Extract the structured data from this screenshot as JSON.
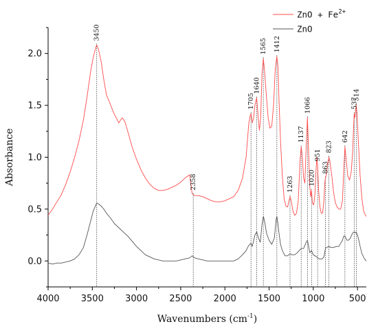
{
  "chart_data": {
    "type": "line",
    "xlabel": "Wavenumbers (cm",
    "xlabel_sup": "-1",
    "xlabel_close": ")",
    "ylabel": "Absorbance",
    "xlim": [
      4000,
      400
    ],
    "ylim": [
      -0.25,
      2.25
    ],
    "x_reversed": true,
    "x_ticks": [
      4000,
      3500,
      3000,
      2500,
      2000,
      1500,
      1000,
      500
    ],
    "y_ticks": [
      0.0,
      0.5,
      1.0,
      1.5,
      2.0
    ],
    "x_tick_labels": [
      "4000",
      "3500",
      "3000",
      "2500",
      "2000",
      "1500",
      "1000",
      "500"
    ],
    "y_tick_labels": [
      "0.0",
      "0.5",
      "1.0",
      "1.5",
      "2.0"
    ],
    "legend_position": "top-right",
    "legend": [
      {
        "label": "ZnO + Fe",
        "sup": "2+",
        "color": "#ff4a4a"
      },
      {
        "label": "ZnO",
        "sup": "",
        "color": "#555555"
      }
    ],
    "series": [
      {
        "name": "ZnO + Fe2+",
        "color": "#ff4a4a",
        "points": [
          [
            4000,
            0.44
          ],
          [
            3950,
            0.5
          ],
          [
            3900,
            0.57
          ],
          [
            3850,
            0.64
          ],
          [
            3800,
            0.74
          ],
          [
            3750,
            0.86
          ],
          [
            3700,
            1.0
          ],
          [
            3650,
            1.16
          ],
          [
            3600,
            1.36
          ],
          [
            3560,
            1.58
          ],
          [
            3520,
            1.82
          ],
          [
            3490,
            1.96
          ],
          [
            3460,
            2.06
          ],
          [
            3450,
            2.08
          ],
          [
            3430,
            2.04
          ],
          [
            3400,
            1.92
          ],
          [
            3370,
            1.75
          ],
          [
            3340,
            1.6
          ],
          [
            3300,
            1.52
          ],
          [
            3260,
            1.43
          ],
          [
            3230,
            1.38
          ],
          [
            3200,
            1.33
          ],
          [
            3180,
            1.36
          ],
          [
            3160,
            1.38
          ],
          [
            3130,
            1.34
          ],
          [
            3100,
            1.25
          ],
          [
            3050,
            1.1
          ],
          [
            3000,
            0.98
          ],
          [
            2950,
            0.88
          ],
          [
            2900,
            0.8
          ],
          [
            2850,
            0.74
          ],
          [
            2800,
            0.7
          ],
          [
            2750,
            0.68
          ],
          [
            2700,
            0.68
          ],
          [
            2650,
            0.69
          ],
          [
            2600,
            0.71
          ],
          [
            2550,
            0.73
          ],
          [
            2500,
            0.76
          ],
          [
            2450,
            0.8
          ],
          [
            2400,
            0.83
          ],
          [
            2370,
            0.65
          ],
          [
            2358,
            0.64
          ],
          [
            2340,
            0.63
          ],
          [
            2300,
            0.63
          ],
          [
            2250,
            0.62
          ],
          [
            2200,
            0.6
          ],
          [
            2150,
            0.58
          ],
          [
            2100,
            0.57
          ],
          [
            2050,
            0.57
          ],
          [
            2000,
            0.58
          ],
          [
            1950,
            0.6
          ],
          [
            1900,
            0.62
          ],
          [
            1850,
            0.68
          ],
          [
            1800,
            0.8
          ],
          [
            1760,
            1.0
          ],
          [
            1730,
            1.32
          ],
          [
            1715,
            1.4
          ],
          [
            1705,
            1.42
          ],
          [
            1690,
            1.33
          ],
          [
            1675,
            1.38
          ],
          [
            1660,
            1.5
          ],
          [
            1645,
            1.56
          ],
          [
            1640,
            1.57
          ],
          [
            1625,
            1.4
          ],
          [
            1610,
            1.26
          ],
          [
            1595,
            1.38
          ],
          [
            1580,
            1.8
          ],
          [
            1565,
            1.95
          ],
          [
            1550,
            1.82
          ],
          [
            1530,
            1.58
          ],
          [
            1510,
            1.38
          ],
          [
            1490,
            1.28
          ],
          [
            1470,
            1.3
          ],
          [
            1450,
            1.5
          ],
          [
            1430,
            1.85
          ],
          [
            1412,
            1.97
          ],
          [
            1400,
            1.88
          ],
          [
            1390,
            1.6
          ],
          [
            1370,
            1.15
          ],
          [
            1350,
            0.82
          ],
          [
            1330,
            0.6
          ],
          [
            1310,
            0.53
          ],
          [
            1290,
            0.52
          ],
          [
            1275,
            0.58
          ],
          [
            1263,
            0.62
          ],
          [
            1250,
            0.58
          ],
          [
            1230,
            0.48
          ],
          [
            1210,
            0.44
          ],
          [
            1190,
            0.46
          ],
          [
            1170,
            0.58
          ],
          [
            1150,
            0.96
          ],
          [
            1137,
            1.1
          ],
          [
            1125,
            1.02
          ],
          [
            1110,
            0.8
          ],
          [
            1095,
            0.75
          ],
          [
            1080,
            1.1
          ],
          [
            1066,
            1.38
          ],
          [
            1055,
            1.1
          ],
          [
            1040,
            0.72
          ],
          [
            1030,
            0.62
          ],
          [
            1020,
            0.68
          ],
          [
            1010,
            0.56
          ],
          [
            995,
            0.54
          ],
          [
            980,
            0.66
          ],
          [
            970,
            0.86
          ],
          [
            960,
            1.0
          ],
          [
            951,
            0.92
          ],
          [
            940,
            0.68
          ],
          [
            925,
            0.52
          ],
          [
            910,
            0.46
          ],
          [
            895,
            0.46
          ],
          [
            880,
            0.58
          ],
          [
            870,
            0.75
          ],
          [
            863,
            0.8
          ],
          [
            855,
            0.82
          ],
          [
            845,
            0.88
          ],
          [
            835,
            0.95
          ],
          [
            823,
            1.0
          ],
          [
            810,
            0.95
          ],
          [
            790,
            0.82
          ],
          [
            770,
            0.66
          ],
          [
            750,
            0.56
          ],
          [
            730,
            0.52
          ],
          [
            710,
            0.5
          ],
          [
            690,
            0.5
          ],
          [
            670,
            0.58
          ],
          [
            655,
            0.88
          ],
          [
            642,
            1.1
          ],
          [
            630,
            1.0
          ],
          [
            610,
            0.82
          ],
          [
            590,
            0.78
          ],
          [
            570,
            0.86
          ],
          [
            555,
            1.05
          ],
          [
            545,
            1.28
          ],
          [
            537,
            1.42
          ],
          [
            530,
            1.38
          ],
          [
            520,
            1.45
          ],
          [
            514,
            1.5
          ],
          [
            505,
            1.42
          ],
          [
            490,
            1.15
          ],
          [
            470,
            0.82
          ],
          [
            450,
            0.6
          ],
          [
            430,
            0.48
          ],
          [
            410,
            0.44
          ],
          [
            400,
            0.43
          ]
        ]
      },
      {
        "name": "ZnO",
        "color": "#555555",
        "points": [
          [
            4000,
            -0.02
          ],
          [
            3950,
            -0.03
          ],
          [
            3900,
            -0.02
          ],
          [
            3850,
            -0.02
          ],
          [
            3800,
            -0.01
          ],
          [
            3750,
            0.0
          ],
          [
            3700,
            0.02
          ],
          [
            3650,
            0.06
          ],
          [
            3600,
            0.13
          ],
          [
            3560,
            0.25
          ],
          [
            3520,
            0.38
          ],
          [
            3490,
            0.48
          ],
          [
            3460,
            0.54
          ],
          [
            3450,
            0.56
          ],
          [
            3430,
            0.55
          ],
          [
            3400,
            0.53
          ],
          [
            3370,
            0.5
          ],
          [
            3340,
            0.46
          ],
          [
            3300,
            0.42
          ],
          [
            3250,
            0.36
          ],
          [
            3200,
            0.32
          ],
          [
            3150,
            0.28
          ],
          [
            3100,
            0.24
          ],
          [
            3050,
            0.19
          ],
          [
            3000,
            0.14
          ],
          [
            2950,
            0.1
          ],
          [
            2900,
            0.06
          ],
          [
            2850,
            0.04
          ],
          [
            2800,
            0.02
          ],
          [
            2750,
            0.01
          ],
          [
            2700,
            0.0
          ],
          [
            2650,
            0.0
          ],
          [
            2600,
            0.0
          ],
          [
            2550,
            0.0
          ],
          [
            2500,
            0.01
          ],
          [
            2450,
            0.02
          ],
          [
            2400,
            0.03
          ],
          [
            2370,
            0.05
          ],
          [
            2358,
            0.04
          ],
          [
            2340,
            0.03
          ],
          [
            2300,
            0.02
          ],
          [
            2250,
            0.01
          ],
          [
            2200,
            0.0
          ],
          [
            2150,
            0.0
          ],
          [
            2100,
            0.0
          ],
          [
            2050,
            0.0
          ],
          [
            2000,
            0.0
          ],
          [
            1950,
            0.0
          ],
          [
            1900,
            0.0
          ],
          [
            1850,
            0.02
          ],
          [
            1800,
            0.06
          ],
          [
            1760,
            0.1
          ],
          [
            1730,
            0.15
          ],
          [
            1705,
            0.17
          ],
          [
            1690,
            0.14
          ],
          [
            1660,
            0.25
          ],
          [
            1640,
            0.28
          ],
          [
            1620,
            0.22
          ],
          [
            1600,
            0.18
          ],
          [
            1580,
            0.35
          ],
          [
            1565,
            0.43
          ],
          [
            1550,
            0.38
          ],
          [
            1530,
            0.27
          ],
          [
            1500,
            0.2
          ],
          [
            1470,
            0.16
          ],
          [
            1440,
            0.22
          ],
          [
            1420,
            0.4
          ],
          [
            1412,
            0.43
          ],
          [
            1400,
            0.36
          ],
          [
            1390,
            0.28
          ],
          [
            1370,
            0.16
          ],
          [
            1350,
            0.1
          ],
          [
            1320,
            0.05
          ],
          [
            1290,
            0.05
          ],
          [
            1263,
            0.07
          ],
          [
            1240,
            0.06
          ],
          [
            1210,
            0.06
          ],
          [
            1180,
            0.08
          ],
          [
            1160,
            0.1
          ],
          [
            1137,
            0.12
          ],
          [
            1110,
            0.12
          ],
          [
            1080,
            0.18
          ],
          [
            1066,
            0.2
          ],
          [
            1055,
            0.15
          ],
          [
            1040,
            0.08
          ],
          [
            1020,
            0.1
          ],
          [
            1000,
            0.06
          ],
          [
            980,
            0.05
          ],
          [
            960,
            0.04
          ],
          [
            951,
            0.03
          ],
          [
            930,
            0.02
          ],
          [
            900,
            0.02
          ],
          [
            880,
            0.04
          ],
          [
            863,
            0.12
          ],
          [
            850,
            0.13
          ],
          [
            823,
            0.14
          ],
          [
            800,
            0.13
          ],
          [
            770,
            0.13
          ],
          [
            740,
            0.14
          ],
          [
            710,
            0.14
          ],
          [
            690,
            0.17
          ],
          [
            670,
            0.2
          ],
          [
            655,
            0.24
          ],
          [
            642,
            0.24
          ],
          [
            620,
            0.2
          ],
          [
            600,
            0.2
          ],
          [
            580,
            0.22
          ],
          [
            560,
            0.26
          ],
          [
            545,
            0.28
          ],
          [
            537,
            0.28
          ],
          [
            525,
            0.27
          ],
          [
            514,
            0.28
          ],
          [
            505,
            0.26
          ],
          [
            490,
            0.22
          ],
          [
            470,
            0.14
          ],
          [
            450,
            0.07
          ],
          [
            420,
            0.02
          ],
          [
            400,
            0.0
          ]
        ]
      }
    ],
    "peaks": [
      {
        "label": "3450",
        "x": 3450,
        "top": 2.08,
        "bottom": -0.25
      },
      {
        "label": "2358",
        "x": 2358,
        "top": 0.64,
        "bottom": -0.25
      },
      {
        "label": "1705",
        "x": 1705,
        "top": 1.42,
        "bottom": -0.25
      },
      {
        "label": "1640",
        "x": 1640,
        "top": 1.57,
        "bottom": -0.25
      },
      {
        "label": "1565",
        "x": 1565,
        "top": 1.95,
        "bottom": -0.25
      },
      {
        "label": "1412",
        "x": 1412,
        "top": 1.97,
        "bottom": -0.25
      },
      {
        "label": "1263",
        "x": 1263,
        "top": 0.62,
        "bottom": -0.25
      },
      {
        "label": "1137",
        "x": 1137,
        "top": 1.1,
        "bottom": -0.25
      },
      {
        "label": "1066",
        "x": 1066,
        "top": 1.38,
        "bottom": -0.25
      },
      {
        "label": "1020",
        "x": 1020,
        "top": 0.68,
        "bottom": -0.25
      },
      {
        "label": "951",
        "x": 951,
        "top": 0.92,
        "bottom": -0.25
      },
      {
        "label": "863",
        "x": 863,
        "top": 0.8,
        "bottom": -0.25
      },
      {
        "label": "823",
        "x": 823,
        "top": 1.0,
        "bottom": -0.25
      },
      {
        "label": "642",
        "x": 642,
        "top": 1.1,
        "bottom": -0.25
      },
      {
        "label": "537",
        "x": 537,
        "top": 1.42,
        "bottom": -0.25
      },
      {
        "label": "514",
        "x": 514,
        "top": 1.5,
        "bottom": -0.25
      }
    ]
  }
}
